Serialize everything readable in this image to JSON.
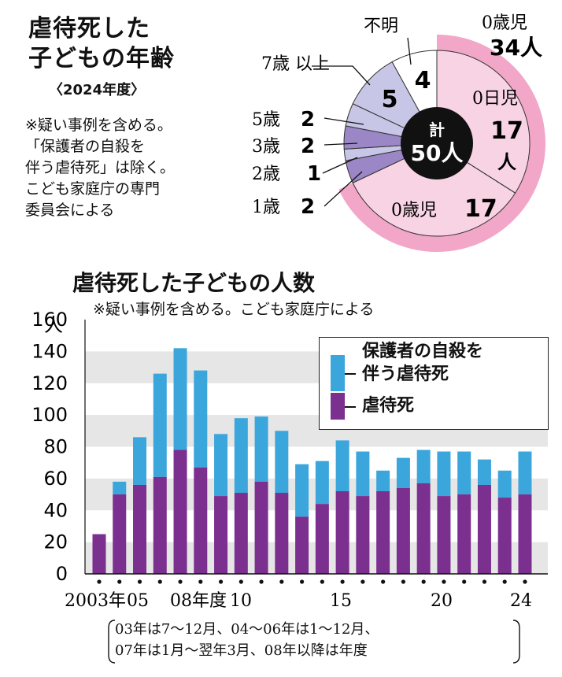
{
  "pie": {
    "title_line1": "虐待死した",
    "title_line2": "子どもの年齢",
    "subtitle": "〈2024年度〉",
    "notes": [
      "※疑い事例を含める。",
      "「保護者の自殺を",
      "伴う虐待死」は除く。",
      "こども家庭庁の専門",
      "委員会による"
    ],
    "center_label1": "計",
    "center_label2": "50人",
    "group_label_top": "0歳児",
    "group_value_top": "34人"
  },
  "bar": {
    "title": "虐待死した子どもの人数",
    "note": "※疑い事例を含める。こども家庭庁による",
    "legend": {
      "upper_line1": "保護者の自殺を",
      "upper_line2": "伴う虐待死",
      "lower": "虐待死"
    },
    "y_unit": "人",
    "period_note": [
      "03年は7～12月、04～06年は1～12月、",
      "07年は1月～翌年3月、08年以降は年度"
    ]
  },
  "colors": {
    "abuse": "#7b2f8e",
    "suicide_related": "#3aa6dc",
    "pink": "#f2a7c8",
    "pie_lavender": "#c8c6e6",
    "pie_purple": "#9b86c6",
    "pie_pink_slice": "#f8d3e3",
    "band": "#e6e6e6"
  },
  "chart_data": [
    {
      "type": "pie",
      "title": "虐待死した子どもの年齢",
      "subtitle": "2024年度",
      "total": 50,
      "slices": [
        {
          "label": "0日児",
          "value": 17,
          "display": "17人"
        },
        {
          "label": "0歳児",
          "value": 17,
          "display": "17"
        },
        {
          "label": "1歳",
          "value": 2,
          "display": "2"
        },
        {
          "label": "2歳",
          "value": 1,
          "display": "1"
        },
        {
          "label": "3歳",
          "value": 2,
          "display": "2"
        },
        {
          "label": "5歳",
          "value": 2,
          "display": "2"
        },
        {
          "label": "7歳 以上",
          "value": 5,
          "display": "5"
        },
        {
          "label": "不明",
          "value": 4,
          "display": "4"
        }
      ]
    },
    {
      "type": "bar",
      "stacked": true,
      "title": "虐待死した子どもの人数",
      "ylabel": "人",
      "ylim": [
        0,
        160
      ],
      "yticks": [
        0,
        20,
        40,
        60,
        80,
        100,
        120,
        140,
        160
      ],
      "categories": [
        "2003",
        "2004",
        "2005",
        "2006",
        "2007",
        "2008",
        "2009",
        "2010",
        "2011",
        "2012",
        "2013",
        "2014",
        "2015",
        "2016",
        "2017",
        "2018",
        "2019",
        "2020",
        "2021",
        "2022",
        "2023",
        "2024"
      ],
      "x_tick_labels": [
        {
          "category": "2003",
          "label": "2003年"
        },
        {
          "category": "2005",
          "label": "05"
        },
        {
          "category": "2008",
          "label": "08年度"
        },
        {
          "category": "2010",
          "label": "10"
        },
        {
          "category": "2015",
          "label": "15"
        },
        {
          "category": "2020",
          "label": "20"
        },
        {
          "category": "2024",
          "label": "24"
        }
      ],
      "series": [
        {
          "name": "虐待死",
          "values": [
            25,
            50,
            56,
            61,
            78,
            67,
            49,
            51,
            58,
            51,
            36,
            44,
            52,
            49,
            52,
            54,
            57,
            49,
            50,
            56,
            48,
            50
          ]
        },
        {
          "name": "保護者の自殺を伴う虐待死",
          "values": [
            0,
            8,
            30,
            65,
            64,
            61,
            39,
            47,
            41,
            39,
            33,
            27,
            32,
            28,
            13,
            19,
            21,
            28,
            27,
            16,
            17,
            27
          ]
        }
      ],
      "grid": "horizontal bands"
    }
  ]
}
